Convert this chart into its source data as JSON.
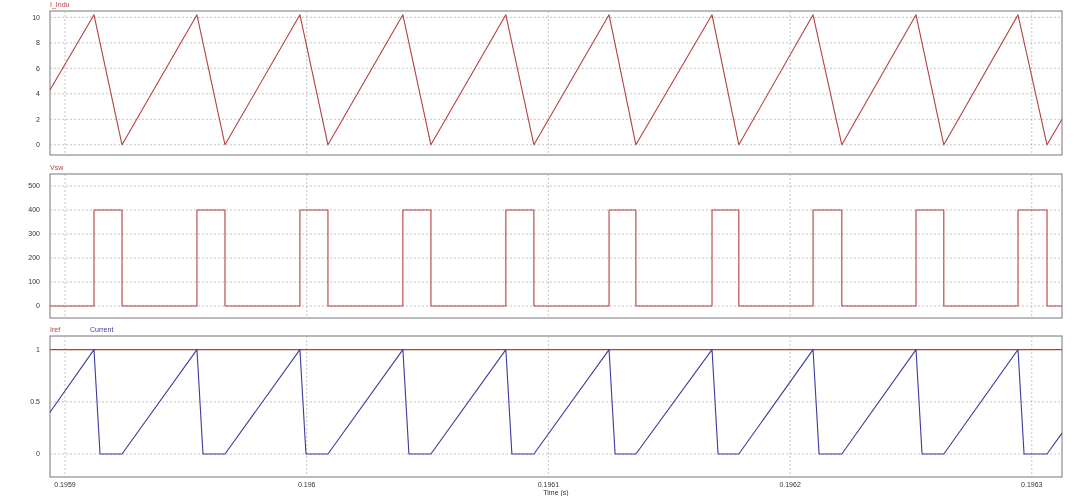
{
  "chart_data": [
    {
      "type": "line",
      "xlim": [
        0.1958938,
        0.1963125
      ],
      "xticks": [
        {
          "value": 0.1959,
          "label": null
        },
        {
          "value": 0.196,
          "label": null
        },
        {
          "value": 0.1961,
          "label": null
        },
        {
          "value": 0.1962,
          "label": null
        },
        {
          "value": 0.1963,
          "label": null
        }
      ],
      "ylim": [
        -0.8,
        10.5
      ],
      "yticks": [
        0,
        2,
        4,
        6,
        8,
        10
      ],
      "grid": true,
      "legend": "top left",
      "tick_labels": "y",
      "series": [
        {
          "name": "I_Indu",
          "color": "#b5413f",
          "x": [
            0.1958938,
            0.195912,
            0.1959236,
            0.1959546,
            0.1959662,
            0.1959972,
            0.1960088,
            0.1960398,
            0.1960514,
            0.1960824,
            0.196094,
            0.1961251,
            0.1961362,
            0.1961677,
            0.1961788,
            0.1962095,
            0.1962214,
            0.1962521,
            0.1962636,
            0.1962943,
            0.1963063,
            0.1963125
          ],
          "values": [
            4.3,
            10.2,
            0,
            10.2,
            0,
            10.2,
            0,
            10.2,
            0,
            10.2,
            0,
            10.2,
            0,
            10.2,
            0,
            10.2,
            0,
            10.2,
            0,
            10.2,
            0,
            2.0
          ]
        }
      ]
    },
    {
      "type": "line",
      "xlim": [
        0.1958938,
        0.1963125
      ],
      "xticks": [
        {
          "value": 0.1959,
          "label": null
        },
        {
          "value": 0.196,
          "label": null
        },
        {
          "value": 0.1961,
          "label": null
        },
        {
          "value": 0.1962,
          "label": null
        },
        {
          "value": 0.1963,
          "label": null
        }
      ],
      "ylim": [
        -50,
        550
      ],
      "yticks": [
        0,
        100,
        200,
        300,
        400,
        500
      ],
      "grid": true,
      "legend": "top left",
      "tick_labels": "y",
      "series": [
        {
          "name": "Vsw",
          "color": "#b5413f",
          "x": [
            0.1958938,
            0.195912,
            0.195912,
            0.1959236,
            0.1959236,
            0.1959546,
            0.1959546,
            0.1959662,
            0.1959662,
            0.1959972,
            0.1959972,
            0.1960088,
            0.1960088,
            0.1960398,
            0.1960398,
            0.1960514,
            0.1960514,
            0.1960824,
            0.1960824,
            0.196094,
            0.196094,
            0.1961251,
            0.1961251,
            0.1961362,
            0.1961362,
            0.1961677,
            0.1961677,
            0.1961788,
            0.1961788,
            0.1962095,
            0.1962095,
            0.1962214,
            0.1962214,
            0.1962521,
            0.1962521,
            0.1962636,
            0.1962636,
            0.1962943,
            0.1962943,
            0.1963063,
            0.1963063,
            0.1963125
          ],
          "values": [
            0,
            0,
            400,
            400,
            0,
            0,
            400,
            400,
            0,
            0,
            400,
            400,
            0,
            0,
            400,
            400,
            0,
            0,
            400,
            400,
            0,
            0,
            400,
            400,
            0,
            0,
            400,
            400,
            0,
            0,
            400,
            400,
            0,
            0,
            400,
            400,
            0,
            0,
            400,
            400,
            0,
            0
          ]
        }
      ]
    },
    {
      "type": "line",
      "xlabel": "Time (s)",
      "xlim": [
        0.1958938,
        0.1963125
      ],
      "xticks": [
        {
          "value": 0.1959,
          "label": "0.1959"
        },
        {
          "value": 0.196,
          "label": "0.196"
        },
        {
          "value": 0.1961,
          "label": "0.1961"
        },
        {
          "value": 0.1962,
          "label": "0.1962"
        },
        {
          "value": 0.1963,
          "label": "0.1963"
        }
      ],
      "ylim": [
        -0.22,
        1.13
      ],
      "yticks": [
        0,
        0.5,
        1
      ],
      "grid": true,
      "legend": "top left",
      "series": [
        {
          "name": "Iref",
          "color": "#c0392b",
          "x": [
            0.1958938,
            0.1963125
          ],
          "values": [
            1,
            1
          ]
        },
        {
          "name": "Current",
          "color": "#3b3b9e",
          "x": [
            0.1958938,
            0.195912,
            0.1959145,
            0.1959236,
            0.1959546,
            0.1959571,
            0.1959662,
            0.1959972,
            0.1959997,
            0.1960088,
            0.1960398,
            0.1960423,
            0.1960514,
            0.1960824,
            0.1960849,
            0.196094,
            0.1961251,
            0.1961276,
            0.1961362,
            0.1961677,
            0.1961702,
            0.1961788,
            0.1962095,
            0.196212,
            0.1962214,
            0.1962521,
            0.1962546,
            0.1962636,
            0.1962943,
            0.1962968,
            0.1963063,
            0.1963125
          ],
          "values": [
            0.4,
            1,
            0,
            0,
            1,
            0,
            0,
            1,
            0,
            0,
            1,
            0,
            0,
            1,
            0,
            0,
            1,
            0,
            0,
            1,
            0,
            0,
            1,
            0,
            0,
            1,
            0,
            0,
            1,
            0,
            0,
            0.2
          ]
        }
      ]
    }
  ]
}
